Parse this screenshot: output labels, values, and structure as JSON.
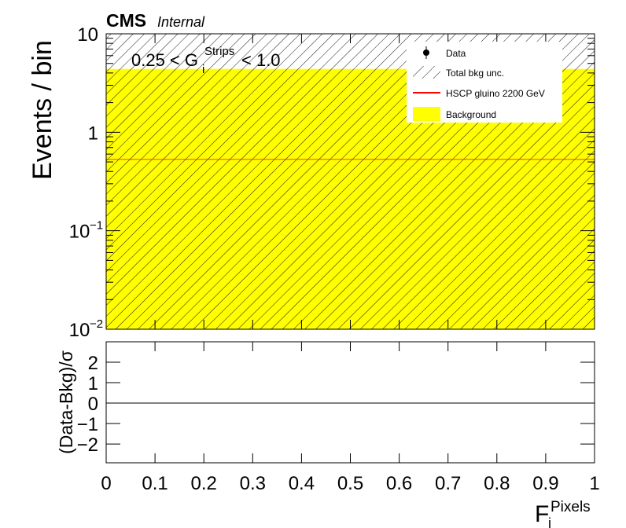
{
  "chart_data": [
    {
      "type": "histogram",
      "title": "CMS",
      "subtitle": "Internal",
      "ylabel": "Events / bin",
      "annotation": {
        "text": "0.25 < G",
        "sub": "i",
        "sup": "Strips",
        "tail": "< 1.0"
      },
      "bins": [
        0,
        1
      ],
      "series": [
        {
          "name": "Data",
          "color": "#000000",
          "values": [
            null
          ]
        },
        {
          "name": "Total bkg unc.",
          "color": "#000000",
          "values": [
            4.4
          ],
          "errors": [
            6
          ],
          "hatch": true
        },
        {
          "name": "HSCP gluino 2200 GeV",
          "color": "#ff0000",
          "values": [
            0.53
          ]
        },
        {
          "name": "Background",
          "color": "#ffff00",
          "values": [
            4.4
          ]
        }
      ],
      "xlim": [
        0,
        1
      ],
      "ylim": [
        0.01,
        10
      ],
      "log_scale": true,
      "yticks": [
        {
          "value": 0.01,
          "label": "10",
          "exponent": "−2"
        },
        {
          "value": 0.1,
          "label": "10",
          "exponent": "−1"
        },
        1,
        10
      ],
      "legend": "upper right"
    },
    {
      "type": "ratio",
      "ylabel": "(Data-Bkg)/σ",
      "xlabel": {
        "text": "F",
        "sub": "i",
        "sup": "Pixels"
      },
      "xlim": [
        0,
        1
      ],
      "xticks": [
        0,
        0.1,
        0.2,
        0.3,
        0.4,
        0.5,
        0.6,
        0.7,
        0.8,
        0.9,
        1
      ],
      "ylim": [
        -2.92,
        3
      ],
      "yticks": [
        {
          "value": -2,
          "label": "−2"
        },
        {
          "value": -1,
          "label": "−1"
        },
        0,
        1,
        2
      ],
      "reference_line": 0
    }
  ]
}
